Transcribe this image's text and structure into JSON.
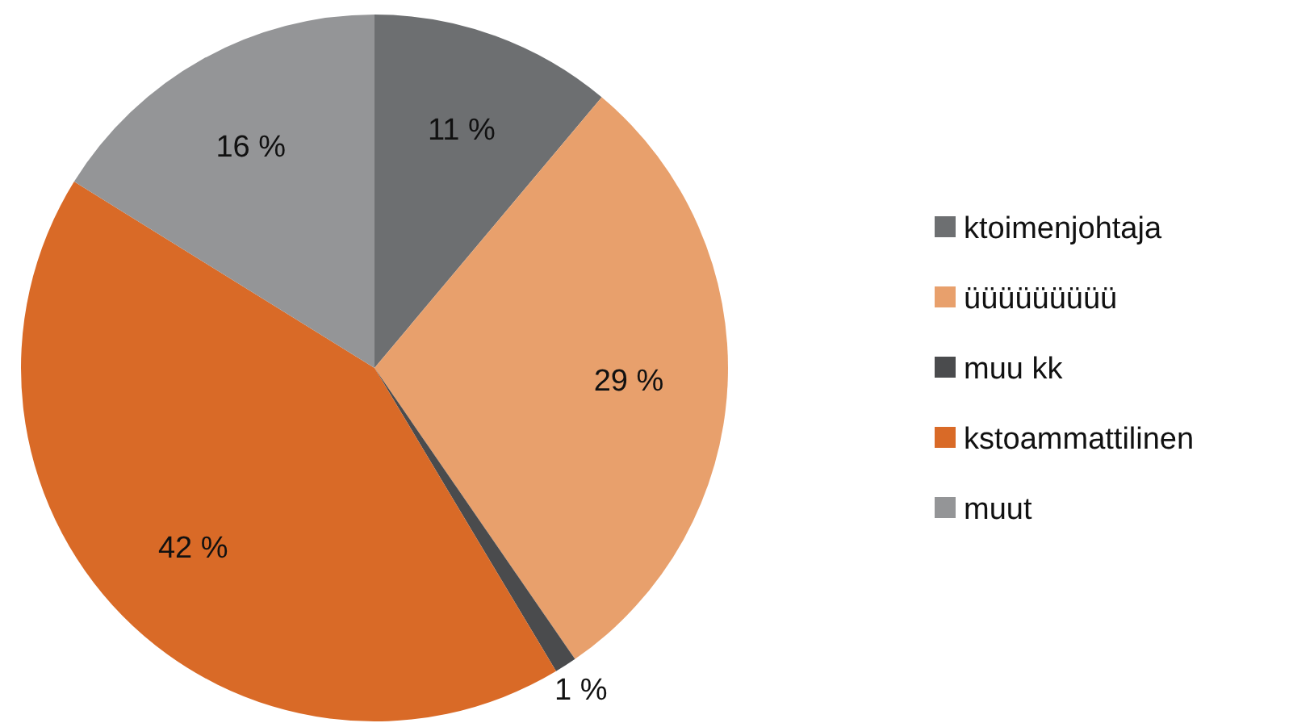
{
  "chart_data": {
    "type": "pie",
    "categories": [
      "ktoimenjohtaja",
      "üüüüüüüüü",
      "muu kk",
      "kstoammattilinen",
      "muut"
    ],
    "values": [
      11,
      29,
      1,
      42,
      16
    ],
    "colors": [
      "#6d6f71",
      "#e8a06c",
      "#4a4b4d",
      "#d96a27",
      "#949597"
    ],
    "value_labels": [
      "11 %",
      "29 %",
      "1 %",
      "42 %",
      "16 %"
    ],
    "legend": "right"
  }
}
